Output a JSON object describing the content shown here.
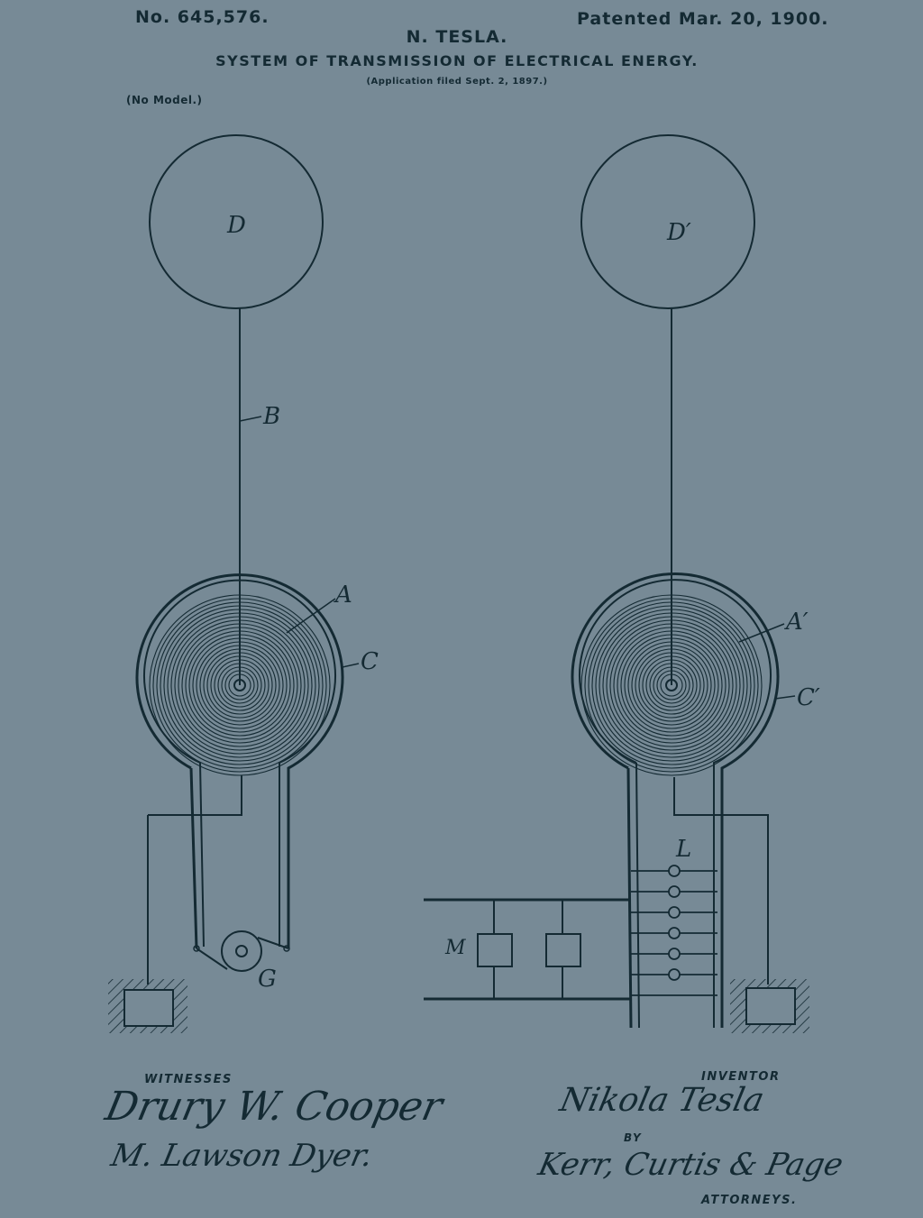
{
  "header": {
    "patent_number": "No. 645,576.",
    "patent_date": "Patented Mar. 20, 1900.",
    "inventor": "N. TESLA.",
    "title": "SYSTEM OF TRANSMISSION OF ELECTRICAL ENERGY.",
    "application_note": "(Application filed Sept. 2, 1897.)",
    "model_note": "(No Model.)"
  },
  "labels": {
    "d": "D",
    "d_prime": "D′",
    "b": "B",
    "a": "A",
    "a_prime": "A′",
    "c": "C",
    "c_prime": "C′",
    "g": "G",
    "l": "L",
    "m": "M"
  },
  "footer": {
    "witnesses_label": "WITNESSES",
    "inventor_label": "INVENTOR",
    "by_label": "BY",
    "attorneys_label": "ATTORNEYS.",
    "witness_signature_1": "Drury W. Cooper",
    "witness_signature_2": "M. Lawson Dyer.",
    "inventor_signature": "Nikola Tesla",
    "attorneys_signature": "Kerr, Curtis & Page"
  },
  "colors": {
    "background": "#778a96",
    "ink": "#142a33"
  }
}
